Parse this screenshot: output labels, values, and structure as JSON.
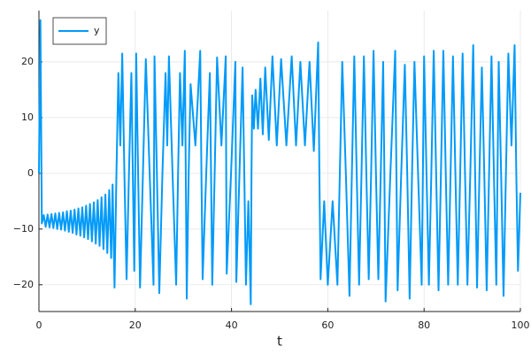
{
  "chart_data": {
    "type": "line",
    "xlabel": "t",
    "xlim": [
      0,
      100
    ],
    "ylim": [
      -24.8,
      29.2
    ],
    "xticks": [
      0,
      20,
      40,
      60,
      80,
      100
    ],
    "yticks": [
      {
        "value": -20,
        "label": "−20"
      },
      {
        "value": -10,
        "label": "−10"
      },
      0,
      10,
      20
    ],
    "grid": true,
    "legend": "top-left",
    "x": [
      0,
      0.3,
      0.6,
      1.0,
      1.4,
      1.8,
      2.2,
      2.6,
      3.0,
      3.4,
      3.8,
      4.2,
      4.6,
      5.0,
      5.4,
      5.8,
      6.2,
      6.6,
      7.0,
      7.4,
      7.8,
      8.2,
      8.6,
      9.0,
      9.4,
      9.8,
      10.2,
      10.6,
      11.0,
      11.4,
      11.8,
      12.2,
      12.6,
      13.0,
      13.4,
      13.8,
      14.2,
      14.6,
      15.0,
      15.3,
      15.7,
      16.1,
      16.5,
      16.9,
      17.3,
      17.75,
      18.2,
      18.7,
      19.2,
      19.5,
      19.8,
      20.0,
      20.2,
      20.6,
      21,
      21.6,
      22.2,
      23,
      23.8,
      23.9,
      24,
      24.5,
      25,
      25.65,
      26.3,
      26.65,
      27,
      27.75,
      28.5,
      28.9,
      29.3,
      29.8,
      30.3,
      30.5,
      30.7,
      31.1,
      31.5,
      32.5,
      33.5,
      33.75,
      34,
      34.75,
      35.5,
      35.75,
      36,
      36.5,
      37,
      37.9,
      38.8,
      38.9,
      39,
      39.9,
      40.8,
      40.9,
      41,
      41.65,
      42.3,
      42.65,
      43,
      43.5,
      44,
      44.15,
      44.3,
      44.65,
      45,
      45.5,
      46,
      46.5,
      47,
      47.75,
      48.5,
      49.4,
      50.3,
      51.4,
      52.5,
      53.4,
      54.3,
      55.25,
      56.2,
      57.1,
      58,
      58.25,
      58.5,
      59.25,
      60,
      61,
      62,
      62.5,
      63,
      63.75,
      64.5,
      65,
      65.5,
      66,
      66.5,
      67,
      67.5,
      68,
      68.5,
      69,
      69.5,
      70,
      70.5,
      71,
      71.5,
      71.75,
      72,
      73,
      74,
      74.25,
      74.5,
      75.25,
      76,
      76.5,
      77,
      77.5,
      78,
      78.75,
      79.5,
      79.75,
      80,
      80.5,
      81,
      81.5,
      82,
      82.5,
      83,
      83.5,
      84,
      84.5,
      85,
      85.5,
      86,
      86.5,
      87,
      87.5,
      88,
      88.5,
      89,
      89.6,
      90.2,
      90.6,
      91,
      91.5,
      92,
      92.5,
      93,
      93.5,
      94,
      94.5,
      95,
      95.25,
      95.5,
      96,
      96.5,
      97,
      97.5,
      98.15,
      98.8,
      99.15,
      99.5,
      100
    ],
    "series": [
      {
        "name": "y",
        "color": "#009af9",
        "values": [
          0,
          27.5,
          -9,
          -7.5,
          -9.6,
          -7.4,
          -9.7,
          -7.3,
          -9.8,
          -7.2,
          -10,
          -7.1,
          -10.1,
          -7,
          -10.3,
          -6.8,
          -10.5,
          -6.7,
          -10.7,
          -6.5,
          -11,
          -6.3,
          -11.2,
          -6.1,
          -11.5,
          -5.8,
          -11.8,
          -5.5,
          -12.2,
          -5.2,
          -12.6,
          -4.8,
          -13,
          -4.3,
          -13.6,
          -3.8,
          -14.3,
          -3,
          -15.2,
          -2,
          -20.5,
          0,
          18,
          5,
          21.5,
          0,
          -19,
          0,
          18,
          0,
          -17.5,
          0,
          21.5,
          0,
          -20.5,
          0,
          20.5,
          0,
          -20,
          0,
          21,
          0,
          -21.5,
          0,
          18,
          5,
          21,
          0,
          -20,
          0,
          18,
          5,
          22,
          0,
          -22.5,
          0,
          16,
          5,
          22,
          0,
          -19,
          0,
          18,
          0,
          -20,
          0,
          20.8,
          5,
          21,
          0,
          -18,
          0,
          20,
          0,
          -19.5,
          0,
          19,
          0,
          -20,
          -5,
          -23.5,
          0,
          14,
          8,
          15,
          8,
          17,
          7,
          19,
          6,
          21,
          5,
          20.5,
          5,
          21,
          5,
          20,
          5,
          20,
          4,
          23.5,
          0,
          -19,
          -5,
          -20,
          -5,
          -20,
          0,
          20,
          0,
          -22,
          0,
          21,
          0,
          -20,
          0,
          21,
          0,
          -19,
          0,
          22,
          0,
          -19,
          0,
          20,
          0,
          -23,
          0,
          22,
          0,
          -21,
          0,
          19.5,
          0,
          -22.5,
          0,
          20,
          0,
          -20,
          0,
          21,
          0,
          -20,
          0,
          22,
          0,
          -21,
          0,
          22,
          0,
          -20,
          0,
          21,
          0,
          -20,
          0,
          21.5,
          0,
          -20,
          0,
          23,
          0,
          -20.5,
          0,
          19,
          0,
          -21,
          0,
          21,
          0,
          -20,
          0,
          20,
          0,
          -22,
          0,
          21.5,
          5,
          23,
          0,
          -17.5,
          -3.5
        ]
      }
    ]
  }
}
